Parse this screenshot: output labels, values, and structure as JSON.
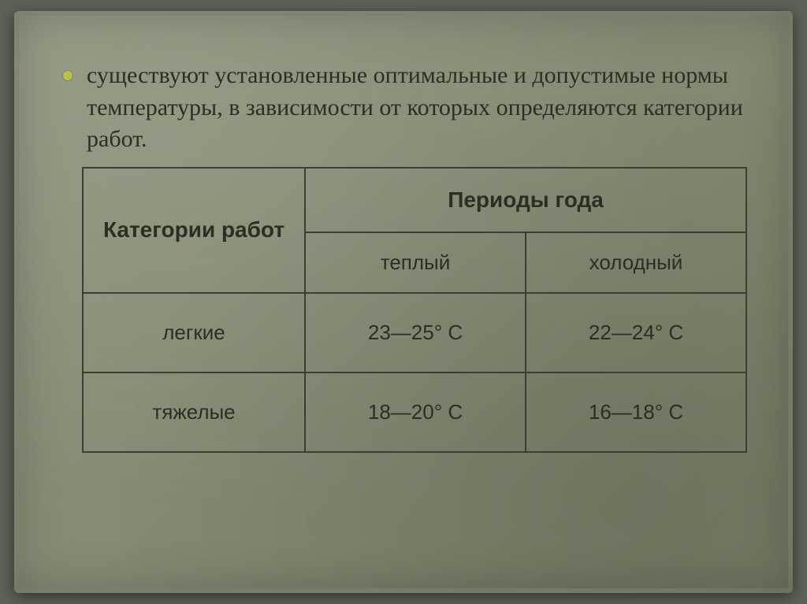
{
  "bullet": {
    "text": "существуют установленные оптимальные и допустимые нормы температуры, в зависимости от которых определяются категории работ."
  },
  "table": {
    "type": "table",
    "border_color": "#3a3f32",
    "text_color": "#2a2e23",
    "header_fontsize": 28,
    "cell_fontsize": 26,
    "col_header": "Категории работ",
    "group_header": "Периоды года",
    "sub_headers": [
      "теплый",
      "холодный"
    ],
    "rows": [
      {
        "label": "легкие",
        "warm": "23—25° С",
        "cold": "22—24° С"
      },
      {
        "label": "тяжелые",
        "warm": "18—20° С",
        "cold": "16—18° С"
      }
    ]
  },
  "style": {
    "page_bg": "#5d6256",
    "paper_bg_from": "#8f967e",
    "paper_bg_to": "#7a8269",
    "bullet_color": "#b9c24a"
  }
}
